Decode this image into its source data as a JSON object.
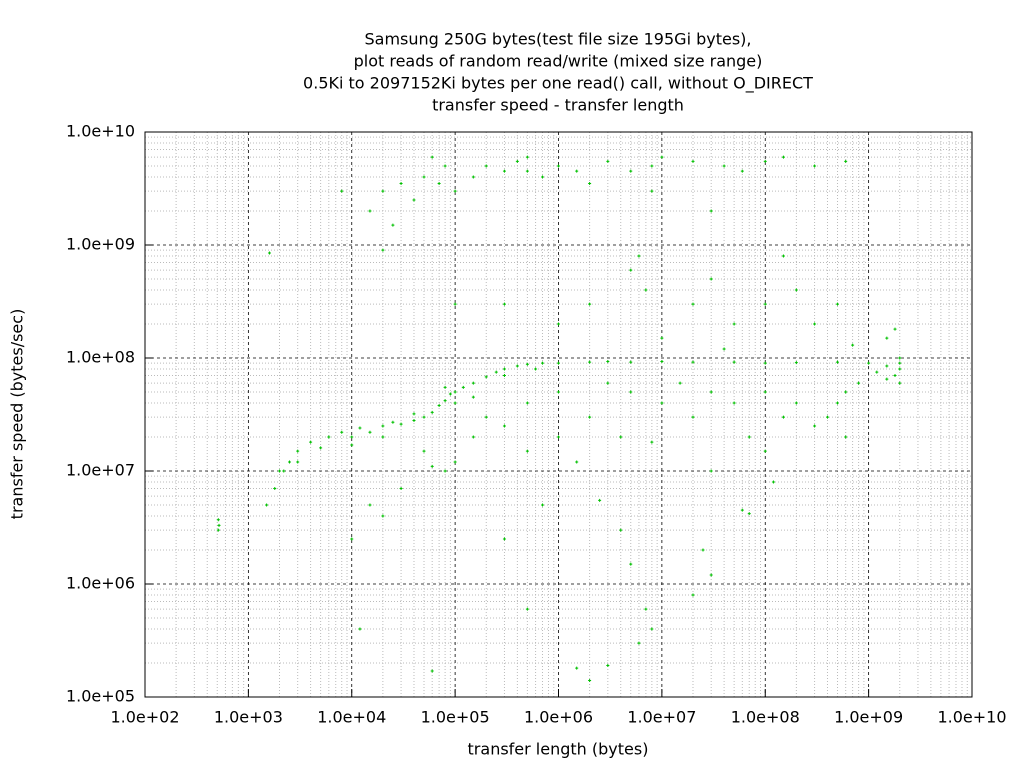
{
  "chart_data": {
    "type": "scatter",
    "title": [
      "Samsung 250G bytes(test file size 195Gi bytes),",
      "plot reads of random read/write (mixed size range)",
      "0.5Ki to 2097152Ki bytes per one read() call, without O_DIRECT",
      "transfer speed - transfer length"
    ],
    "x_label": "transfer length (bytes)",
    "y_label": "transfer speed (bytes/sec)",
    "xlog": true,
    "ylog": true,
    "grid": true,
    "minor_grid": true,
    "color": "#00c000",
    "xlim": [
      100,
      10000000000
    ],
    "ylim": [
      100000,
      10000000000
    ],
    "xticks": [
      {
        "value": 100,
        "label": "1.0e+02"
      },
      {
        "value": 1000,
        "label": "1.0e+03"
      },
      {
        "value": 10000,
        "label": "1.0e+04"
      },
      {
        "value": 100000,
        "label": "1.0e+05"
      },
      {
        "value": 1000000,
        "label": "1.0e+06"
      },
      {
        "value": 10000000,
        "label": "1.0e+07"
      },
      {
        "value": 100000000,
        "label": "1.0e+08"
      },
      {
        "value": 1000000000,
        "label": "1.0e+09"
      },
      {
        "value": 10000000000,
        "label": "1.0e+10"
      }
    ],
    "yticks": [
      {
        "value": 100000,
        "label": "1.0e+05"
      },
      {
        "value": 1000000,
        "label": "1.0e+06"
      },
      {
        "value": 10000000,
        "label": "1.0e+07"
      },
      {
        "value": 100000000,
        "label": "1.0e+08"
      },
      {
        "value": 1000000000,
        "label": "1.0e+09"
      },
      {
        "value": 10000000000,
        "label": "1.0e+10"
      }
    ],
    "x": [
      2000.0,
      2500.0,
      3000.0,
      4000.0,
      5000.0,
      6000.0,
      8000.0,
      10000.0,
      12000.0,
      15000.0,
      20000.0,
      25000.0,
      30000.0,
      40000.0,
      50000.0,
      60000.0,
      70000.0,
      80000.0,
      90000.0,
      100000.0,
      120000.0,
      150000.0,
      200000.0,
      250000.0,
      300000.0,
      400000.0,
      500000.0,
      700000.0,
      1000000.0,
      2000000.0,
      3000000.0,
      5000000.0,
      10000000.0,
      20000000.0,
      50000000.0,
      100000000.0,
      200000000.0,
      500000000.0,
      1000000000.0,
      1500000000.0,
      2000000000.0,
      100000.0,
      80000.0,
      150000.0,
      300000.0,
      600000.0,
      20000.0,
      40000.0,
      10000.0,
      2000000000.0,
      2000000000.0,
      1800000000.0,
      1500000000.0,
      2000000000.0,
      1200000000.0,
      800000000.0,
      600000000.0,
      8000.0,
      15000.0,
      20000.0,
      30000.0,
      40000.0,
      50000.0,
      70000.0,
      80000.0,
      100000.0,
      150000.0,
      200000.0,
      300000.0,
      400000.0,
      500000.0,
      700000.0,
      1000000.0,
      1500000.0,
      2000000.0,
      3000000.0,
      5000000.0,
      8000000.0,
      10000000.0,
      20000000.0,
      40000000.0,
      60000000.0,
      100000000.0,
      150000000.0,
      300000000.0,
      600000000.0,
      60000.0,
      25000.0,
      20000.0,
      30000000.0,
      8000000.0,
      500000.0,
      300000.0,
      1000000.0,
      2000000.0,
      5000000.0,
      7000000.0,
      10000000.0,
      20000000.0,
      30000000.0,
      50000000.0,
      100000000.0,
      200000000.0,
      300000000.0,
      500000000.0,
      1500000000.0,
      1800000000.0,
      100000.0,
      6000000.0,
      150000000.0,
      40000000.0,
      700000000.0,
      50000.0,
      80000.0,
      100000.0,
      150000.0,
      200000.0,
      300000.0,
      500000.0,
      1000000.0,
      2000000.0,
      3000000.0,
      5000000.0,
      10000000.0,
      15000000.0,
      20000000.0,
      30000000.0,
      50000000.0,
      70000000.0,
      100000000.0,
      150000000.0,
      200000000.0,
      300000000.0,
      400000000.0,
      500000000.0,
      600000000.0,
      30000000.0,
      100000000.0,
      120000000.0,
      8000000.0,
      4000000.0,
      1000000.0,
      500000.0,
      30000.0,
      20000.0,
      15000.0,
      60000.0,
      10000.0,
      1500.0,
      1800.0,
      60000000.0,
      70000000.0,
      4000000.0,
      5000000.0,
      25000000.0,
      20000000.0,
      30000000.0,
      2500000.0,
      700000.0,
      1500000.0,
      60000.0,
      1500000.0,
      2000000.0,
      3000000.0,
      8000000.0,
      7000000.0,
      6000000.0,
      500000.0,
      300000.0,
      12000.0,
      512,
      512,
      520,
      1600.0,
      2200.0,
      3000.0
    ],
    "values": [
      10000000.0,
      12000000.0,
      15000000.0,
      18000000.0,
      16000000.0,
      20000000.0,
      22000000.0,
      20000000.0,
      24000000.0,
      22000000.0,
      25000000.0,
      27000000.0,
      26000000.0,
      28000000.0,
      30000000.0,
      33000000.0,
      38000000.0,
      42000000.0,
      48000000.0,
      50000000.0,
      55000000.0,
      60000000.0,
      68000000.0,
      75000000.0,
      80000000.0,
      85000000.0,
      88000000.0,
      90000000.0,
      90000000.0,
      92000000.0,
      93000000.0,
      92000000.0,
      93000000.0,
      92000000.0,
      92000000.0,
      90000000.0,
      91000000.0,
      92000000.0,
      90000000.0,
      85000000.0,
      80000000.0,
      40000000.0,
      55000000.0,
      45000000.0,
      70000000.0,
      80000000.0,
      20000000.0,
      32000000.0,
      17000000.0,
      60000000.0,
      100000000.0,
      70000000.0,
      65000000.0,
      90000000.0,
      75000000.0,
      60000000.0,
      50000000.0,
      3000000000.0,
      2000000000.0,
      3000000000.0,
      3500000000.0,
      2500000000.0,
      4000000000.0,
      3500000000.0,
      5000000000.0,
      3000000000.0,
      4000000000.0,
      5000000000.0,
      4500000000.0,
      5500000000.0,
      6000000000.0,
      4000000000.0,
      5000000000.0,
      4500000000.0,
      3500000000.0,
      5500000000.0,
      4500000000.0,
      5000000000.0,
      6000000000.0,
      5500000000.0,
      5000000000.0,
      4500000000.0,
      5500000000.0,
      6000000000.0,
      5000000000.0,
      5500000000.0,
      6000000000.0,
      1500000000.0,
      900000000.0,
      2000000000.0,
      3000000000.0,
      4500000000.0,
      300000000.0,
      200000000.0,
      300000000.0,
      600000000.0,
      400000000.0,
      150000000.0,
      300000000.0,
      500000000.0,
      200000000.0,
      300000000.0,
      400000000.0,
      200000000.0,
      300000000.0,
      150000000.0,
      180000000.0,
      300000000.0,
      800000000.0,
      800000000.0,
      120000000.0,
      130000000.0,
      15000000.0,
      10000000.0,
      12000000.0,
      20000000.0,
      30000000.0,
      25000000.0,
      40000000.0,
      50000000.0,
      30000000.0,
      60000000.0,
      50000000.0,
      40000000.0,
      60000000.0,
      30000000.0,
      50000000.0,
      40000000.0,
      20000000.0,
      50000000.0,
      30000000.0,
      40000000.0,
      25000000.0,
      30000000.0,
      40000000.0,
      20000000.0,
      10000000.0,
      15000000.0,
      8000000.0,
      18000000.0,
      20000000.0,
      20000000.0,
      15000000.0,
      7000000.0,
      4000000.0,
      5000000.0,
      11000000.0,
      2500000.0,
      5000000.0,
      7000000.0,
      4500000.0,
      4200000.0,
      3000000.0,
      1500000.0,
      2000000.0,
      800000.0,
      1200000.0,
      5500000.0,
      5000000.0,
      12000000.0,
      170000.0,
      180000.0,
      140000.0,
      190000.0,
      400000.0,
      600000.0,
      300000.0,
      600000.0,
      2500000.0,
      400000.0,
      3000000.0,
      3700000.0,
      3300000.0,
      850000000.0,
      10000000.0,
      12000000.0
    ]
  }
}
